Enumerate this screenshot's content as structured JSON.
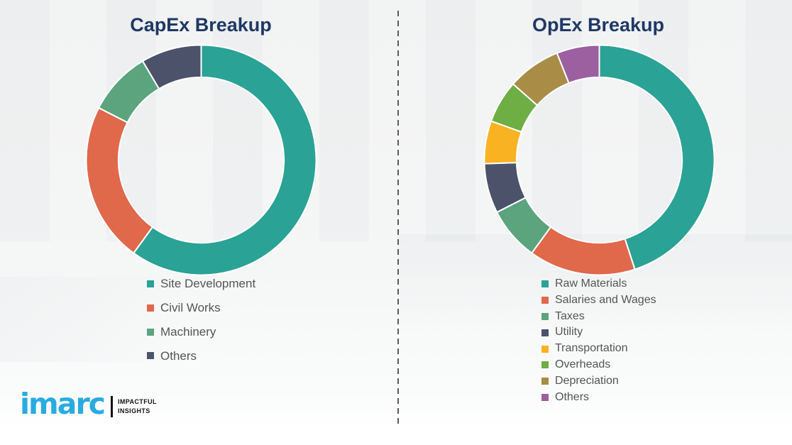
{
  "chart_data": [
    {
      "type": "pie",
      "subtype": "donut",
      "title": "CapEx Breakup",
      "labels": [
        "Site Development",
        "Civil Works",
        "Machinery",
        "Others"
      ],
      "values": [
        60,
        22.5,
        9,
        8.5
      ],
      "colors": [
        "#2aa295",
        "#e0684b",
        "#5ba47e",
        "#4b5269"
      ],
      "start_angle_deg": 0,
      "direction": "clockwise",
      "donut_hole_ratio": 0.72,
      "legend_position": "below-left",
      "data_labels_shown": false
    },
    {
      "type": "pie",
      "subtype": "donut",
      "title": "OpEx Breakup",
      "labels": [
        "Raw Materials",
        "Salaries and Wages",
        "Taxes",
        "Utility",
        "Transportation",
        "Overheads",
        "Depreciation",
        "Others"
      ],
      "values": [
        45,
        15,
        7.5,
        7,
        6,
        6,
        7.5,
        6
      ],
      "colors": [
        "#2aa295",
        "#e0684b",
        "#5ba47e",
        "#4b5269",
        "#f9b221",
        "#6eae44",
        "#a98c46",
        "#9c5fa0"
      ],
      "start_angle_deg": 0,
      "direction": "clockwise",
      "donut_hole_ratio": 0.72,
      "legend_position": "below-left",
      "data_labels_shown": false
    }
  ],
  "branding": {
    "logo_text": "imarc",
    "tagline_line1": "IMPACTFUL",
    "tagline_line2": "INSIGHTS",
    "logo_color": "#29abe2"
  },
  "styles": {
    "title_color": "#1f3864",
    "legend_text_color": "#555555",
    "divider_color": "#5a5a5a",
    "segment_gap_color": "#ffffff"
  }
}
